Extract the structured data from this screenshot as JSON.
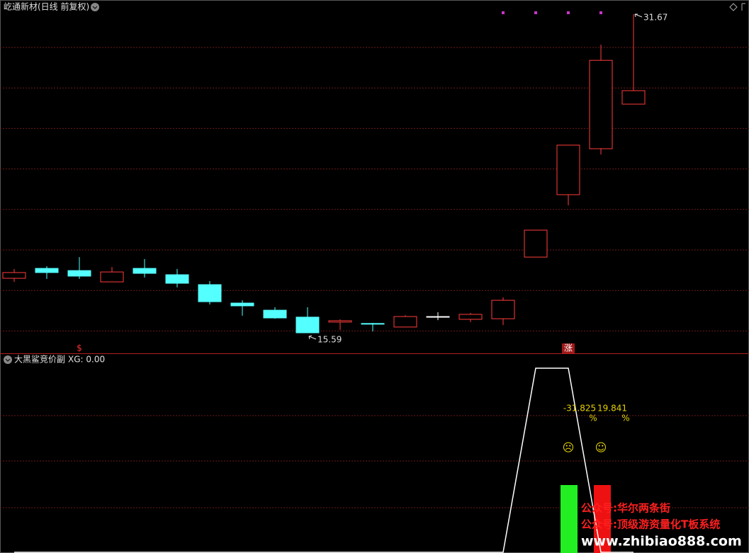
{
  "header": {
    "title": "屹通新材(日线 前复权)"
  },
  "chart_data": [
    {
      "type": "candlestick",
      "colors": {
        "up": "#ff3c3c",
        "down": "#54ffff",
        "flat": "#ffffff",
        "dot": "#cc33cc"
      },
      "candles": [
        {
          "open": 18.34,
          "close": 18.63,
          "high": 18.81,
          "low": 18.16
        },
        {
          "open": 18.84,
          "close": 18.63,
          "high": 18.95,
          "low": 18.31
        },
        {
          "open": 18.73,
          "close": 18.45,
          "high": 19.41,
          "low": 18.31
        },
        {
          "open": 18.16,
          "close": 18.66,
          "high": 18.91,
          "low": 18.16
        },
        {
          "open": 18.84,
          "close": 18.59,
          "high": 19.31,
          "low": 18.38
        },
        {
          "open": 18.52,
          "close": 18.09,
          "high": 18.81,
          "low": 17.88
        },
        {
          "open": 18.02,
          "close": 17.16,
          "high": 18.2,
          "low": 17.02
        },
        {
          "open": 17.09,
          "close": 16.95,
          "high": 17.23,
          "low": 16.45
        },
        {
          "open": 16.73,
          "close": 16.34,
          "high": 16.88,
          "low": 16.3
        },
        {
          "open": 16.38,
          "close": 15.59,
          "high": 16.88,
          "low": 15.59
        },
        {
          "open": 16.13,
          "close": 16.2,
          "high": 16.27,
          "low": 15.73
        },
        {
          "open": 16.06,
          "close": 16.05,
          "high": 16.09,
          "low": 15.66
        },
        {
          "open": 15.88,
          "close": 16.41,
          "high": 16.48,
          "low": 15.88
        },
        {
          "open": 16.41,
          "close": 16.41,
          "high": 16.63,
          "low": 16.23
        },
        {
          "open": 16.27,
          "close": 16.52,
          "high": 16.59,
          "low": 16.13
        },
        {
          "open": 16.3,
          "close": 17.23,
          "high": 17.38,
          "low": 15.98
        },
        {
          "open": 19.41,
          "close": 20.77,
          "high": 20.77,
          "low": 19.41
        },
        {
          "open": 22.56,
          "close": 25.06,
          "high": 25.06,
          "low": 22.02
        },
        {
          "open": 24.88,
          "close": 29.34,
          "high": 30.13,
          "low": 24.59
        },
        {
          "open": 27.13,
          "close": 27.81,
          "high": 31.67,
          "low": 27.13
        }
      ],
      "signals": [
        null,
        null,
        "$",
        null,
        null,
        null,
        null,
        null,
        null,
        null,
        null,
        null,
        null,
        null,
        null,
        null,
        null,
        "涨",
        null,
        null
      ],
      "top_dots": [
        false,
        false,
        false,
        false,
        false,
        false,
        false,
        false,
        false,
        false,
        false,
        false,
        false,
        false,
        false,
        true,
        true,
        true,
        true,
        false
      ]
    },
    {
      "type": "line",
      "name": "大黑鲨竞价副",
      "readout": "XG: 0.00",
      "color": "#ffffff",
      "values": [
        0,
        0,
        0,
        0,
        0,
        0,
        0,
        0,
        0,
        0,
        0,
        0,
        0,
        0,
        0,
        0,
        1,
        1,
        0,
        0
      ],
      "stats": [
        {
          "value": -31.825,
          "unit": "%",
          "icon": "☹"
        },
        {
          "value": 19.841,
          "unit": "%",
          "icon": "☺"
        }
      ]
    }
  ],
  "watermark": [
    "公众号:华尔两条街",
    "公众号:顶级游资量化T板系统",
    "www.zhibiao888.com"
  ]
}
